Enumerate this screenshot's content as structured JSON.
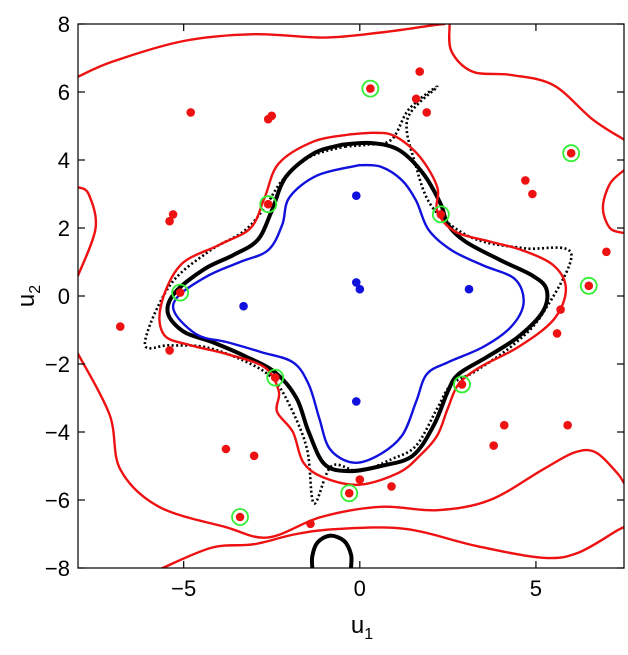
{
  "chart_data": {
    "type": "scatter",
    "title": "",
    "xlabel": "u",
    "xlabel_sub": "1",
    "ylabel": "u",
    "ylabel_sub": "2",
    "xlim": [
      -8,
      7.5
    ],
    "ylim": [
      -8,
      8
    ],
    "xticks": [
      -5,
      0,
      5
    ],
    "xtick_labels": [
      "−5",
      "0",
      "5"
    ],
    "yticks": [
      -8,
      -6,
      -4,
      -2,
      0,
      2,
      4,
      6,
      8
    ],
    "ytick_labels": [
      "−8",
      "−6",
      "−4",
      "−2",
      "0",
      "2",
      "4",
      "6",
      "8"
    ],
    "grid": false,
    "colors": {
      "red": "#ee1111",
      "blue": "#1111dd",
      "black": "#000000",
      "green_ring": "#33ee33"
    },
    "series": [
      {
        "kind": "points",
        "color": "red",
        "points": [
          [
            1.7,
            6.6
          ],
          [
            1.6,
            5.8
          ],
          [
            1.9,
            5.4
          ],
          [
            -4.8,
            5.4
          ],
          [
            -2.6,
            5.2
          ],
          [
            -2.5,
            5.3
          ],
          [
            -5.3,
            2.4
          ],
          [
            -5.4,
            2.2
          ],
          [
            4.7,
            3.4
          ],
          [
            4.9,
            3.0
          ],
          [
            -6.8,
            -0.9
          ],
          [
            -5.4,
            -1.6
          ],
          [
            5.7,
            -0.4
          ],
          [
            5.6,
            -1.1
          ],
          [
            4.1,
            -3.8
          ],
          [
            3.8,
            -4.4
          ],
          [
            5.9,
            -3.8
          ],
          [
            7.0,
            1.3
          ],
          [
            -3.8,
            -4.5
          ],
          [
            -3.0,
            -4.7
          ],
          [
            0.0,
            -5.4
          ],
          [
            0.9,
            -5.6
          ],
          [
            -1.4,
            -6.7
          ]
        ]
      },
      {
        "kind": "points",
        "color": "red",
        "ring": "green_ring",
        "points": [
          [
            0.3,
            6.1
          ],
          [
            6.0,
            4.2
          ],
          [
            2.3,
            2.4
          ],
          [
            -2.6,
            2.7
          ],
          [
            6.5,
            0.3
          ],
          [
            -5.1,
            0.1
          ],
          [
            -2.4,
            -2.4
          ],
          [
            2.9,
            -2.6
          ],
          [
            -0.3,
            -5.8
          ],
          [
            -3.4,
            -6.5
          ]
        ]
      },
      {
        "kind": "points",
        "color": "blue",
        "points": [
          [
            -0.1,
            2.95
          ],
          [
            -3.3,
            -0.3
          ],
          [
            -0.1,
            0.4
          ],
          [
            0.0,
            0.2
          ],
          [
            3.1,
            0.2
          ],
          [
            -0.1,
            -3.1
          ]
        ]
      },
      {
        "kind": "curve",
        "color": "black",
        "style": "solid-thick",
        "points": [
          [
            -0.5,
            4.45
          ],
          [
            -1.3,
            4.2
          ],
          [
            -2.1,
            3.5
          ],
          [
            -2.5,
            2.5
          ],
          [
            -2.9,
            1.65
          ],
          [
            -3.6,
            1.2
          ],
          [
            -4.4,
            0.8
          ],
          [
            -5.25,
            0.1
          ],
          [
            -5.45,
            -0.5
          ],
          [
            -5.0,
            -1.05
          ],
          [
            -4.2,
            -1.35
          ],
          [
            -3.3,
            -1.75
          ],
          [
            -2.4,
            -2.25
          ],
          [
            -1.8,
            -3.0
          ],
          [
            -1.45,
            -4.0
          ],
          [
            -1.0,
            -4.95
          ],
          [
            -0.3,
            -5.15
          ],
          [
            0.6,
            -5.0
          ],
          [
            1.5,
            -4.7
          ],
          [
            2.1,
            -3.8
          ],
          [
            2.5,
            -2.8
          ],
          [
            2.8,
            -2.3
          ],
          [
            3.6,
            -1.8
          ],
          [
            4.5,
            -1.2
          ],
          [
            5.2,
            -0.45
          ],
          [
            5.3,
            0.2
          ],
          [
            4.9,
            0.6
          ],
          [
            4.0,
            1.05
          ],
          [
            3.0,
            1.6
          ],
          [
            2.5,
            2.1
          ],
          [
            2.3,
            2.7
          ],
          [
            1.8,
            3.6
          ],
          [
            1.1,
            4.3
          ],
          [
            0.3,
            4.5
          ],
          [
            -0.5,
            4.45
          ]
        ]
      },
      {
        "kind": "curve",
        "color": "black",
        "style": "dotted",
        "points": [
          [
            -0.4,
            4.4
          ],
          [
            -1.4,
            4.1
          ],
          [
            -2.2,
            3.4
          ],
          [
            -2.7,
            2.6
          ],
          [
            -3.3,
            1.9
          ],
          [
            -4.3,
            1.3
          ],
          [
            -5.4,
            0.3
          ],
          [
            -6.1,
            -1.4
          ],
          [
            -5.4,
            -1.45
          ],
          [
            -4.4,
            -1.5
          ],
          [
            -3.3,
            -1.9
          ],
          [
            -2.5,
            -2.4
          ],
          [
            -2.0,
            -3.2
          ],
          [
            -1.5,
            -4.5
          ],
          [
            -1.3,
            -6.1
          ],
          [
            -0.8,
            -5.0
          ],
          [
            0.0,
            -5.15
          ],
          [
            0.9,
            -4.8
          ],
          [
            1.6,
            -4.4
          ],
          [
            2.2,
            -3.3
          ],
          [
            2.6,
            -2.6
          ],
          [
            3.3,
            -2.2
          ],
          [
            4.4,
            -1.4
          ],
          [
            5.2,
            -0.5
          ],
          [
            6.0,
            1.25
          ],
          [
            4.7,
            1.4
          ],
          [
            3.5,
            1.6
          ],
          [
            2.7,
            2.0
          ],
          [
            2.0,
            2.7
          ],
          [
            1.6,
            3.8
          ],
          [
            1.35,
            5.2
          ],
          [
            2.2,
            6.15
          ],
          [
            1.4,
            5.5
          ],
          [
            0.9,
            4.6
          ],
          [
            0.2,
            4.45
          ],
          [
            -0.4,
            4.4
          ]
        ]
      },
      {
        "kind": "curve",
        "color": "blue",
        "style": "solid",
        "points": [
          [
            0.0,
            3.85
          ],
          [
            -1.2,
            3.55
          ],
          [
            -2.0,
            2.9
          ],
          [
            -2.2,
            2.1
          ],
          [
            -2.6,
            1.35
          ],
          [
            -3.4,
            1.0
          ],
          [
            -4.3,
            0.6
          ],
          [
            -5.15,
            0.0
          ],
          [
            -5.25,
            -0.5
          ],
          [
            -4.6,
            -1.15
          ],
          [
            -3.8,
            -1.35
          ],
          [
            -2.8,
            -1.65
          ],
          [
            -1.9,
            -1.95
          ],
          [
            -1.45,
            -2.6
          ],
          [
            -1.15,
            -3.6
          ],
          [
            -0.85,
            -4.5
          ],
          [
            -0.2,
            -4.9
          ],
          [
            0.5,
            -4.7
          ],
          [
            1.2,
            -4.1
          ],
          [
            1.6,
            -3.1
          ],
          [
            1.9,
            -2.3
          ],
          [
            2.5,
            -1.95
          ],
          [
            3.5,
            -1.5
          ],
          [
            4.3,
            -0.9
          ],
          [
            4.65,
            -0.2
          ],
          [
            4.4,
            0.5
          ],
          [
            3.5,
            0.9
          ],
          [
            2.6,
            1.35
          ],
          [
            1.95,
            1.95
          ],
          [
            1.6,
            2.8
          ],
          [
            1.2,
            3.4
          ],
          [
            0.6,
            3.8
          ],
          [
            0.0,
            3.85
          ]
        ]
      },
      {
        "kind": "curve",
        "color": "red",
        "style": "solid",
        "points": [
          [
            -0.3,
            4.75
          ],
          [
            -1.3,
            4.55
          ],
          [
            -2.3,
            3.9
          ],
          [
            -2.7,
            2.9
          ],
          [
            -3.1,
            2.0
          ],
          [
            -4.0,
            1.5
          ],
          [
            -5.1,
            0.9
          ],
          [
            -5.65,
            -0.3
          ],
          [
            -5.55,
            -1.15
          ],
          [
            -4.8,
            -1.45
          ],
          [
            -3.8,
            -1.7
          ],
          [
            -2.7,
            -2.1
          ],
          [
            -2.3,
            -2.8
          ],
          [
            -2.35,
            -3.4
          ],
          [
            -1.9,
            -4.0
          ],
          [
            -1.6,
            -4.9
          ],
          [
            -1.0,
            -5.35
          ],
          [
            0.0,
            -5.55
          ],
          [
            1.1,
            -5.2
          ],
          [
            1.7,
            -4.7
          ],
          [
            2.2,
            -4.1
          ],
          [
            2.5,
            -3.3
          ],
          [
            2.8,
            -2.6
          ],
          [
            3.4,
            -2.1
          ],
          [
            4.5,
            -1.5
          ],
          [
            5.5,
            -0.7
          ],
          [
            5.85,
            0.2
          ],
          [
            5.5,
            0.9
          ],
          [
            4.6,
            1.35
          ],
          [
            3.7,
            1.6
          ],
          [
            2.7,
            1.9
          ],
          [
            2.2,
            2.5
          ],
          [
            2.2,
            3.2
          ],
          [
            1.7,
            4.1
          ],
          [
            1.0,
            4.7
          ],
          [
            0.4,
            4.8
          ],
          [
            -0.3,
            4.75
          ]
        ]
      },
      {
        "kind": "curve",
        "color": "red",
        "style": "solid",
        "points": [
          [
            -8.0,
            6.45
          ],
          [
            -7.0,
            6.9
          ],
          [
            -5.0,
            7.5
          ],
          [
            -3.0,
            7.7
          ],
          [
            -1.0,
            7.6
          ],
          [
            0.6,
            7.75
          ],
          [
            2.0,
            7.95
          ],
          [
            2.4,
            8.0
          ]
        ]
      },
      {
        "kind": "curve",
        "color": "red",
        "style": "solid",
        "points": [
          [
            2.55,
            8.0
          ],
          [
            2.6,
            7.2
          ],
          [
            3.2,
            6.6
          ],
          [
            4.3,
            6.5
          ],
          [
            5.5,
            6.2
          ],
          [
            6.6,
            5.2
          ],
          [
            7.5,
            4.6
          ]
        ]
      },
      {
        "kind": "curve",
        "color": "red",
        "style": "solid",
        "points": [
          [
            -8.0,
            0.6
          ],
          [
            -7.5,
            2.0
          ],
          [
            -7.7,
            3.0
          ],
          [
            -8.0,
            3.2
          ]
        ]
      },
      {
        "kind": "curve",
        "color": "red",
        "style": "solid",
        "points": [
          [
            7.5,
            3.7
          ],
          [
            7.1,
            3.3
          ],
          [
            6.9,
            2.6
          ],
          [
            7.1,
            2.0
          ],
          [
            7.5,
            1.85
          ]
        ]
      },
      {
        "kind": "curve",
        "color": "red",
        "style": "solid",
        "points": [
          [
            -8.0,
            -1.7
          ],
          [
            -7.1,
            -3.5
          ],
          [
            -6.8,
            -5.1
          ],
          [
            -5.7,
            -6.2
          ],
          [
            -3.8,
            -6.8
          ],
          [
            -2.6,
            -7.1
          ],
          [
            -1.1,
            -6.5
          ],
          [
            0.6,
            -6.2
          ],
          [
            2.2,
            -6.3
          ],
          [
            3.7,
            -6.0
          ],
          [
            5.2,
            -5.1
          ],
          [
            6.1,
            -4.6
          ],
          [
            6.7,
            -4.6
          ],
          [
            7.3,
            -5.2
          ],
          [
            7.5,
            -5.5
          ]
        ]
      },
      {
        "kind": "curve",
        "color": "red",
        "style": "solid",
        "points": [
          [
            -5.6,
            -8.0
          ],
          [
            -4.2,
            -7.4
          ],
          [
            -3.0,
            -7.3
          ],
          [
            -1.8,
            -7.0
          ],
          [
            -0.6,
            -6.85
          ],
          [
            1.3,
            -6.85
          ],
          [
            3.3,
            -7.35
          ],
          [
            5.2,
            -7.7
          ],
          [
            6.2,
            -7.55
          ],
          [
            7.3,
            -6.9
          ],
          [
            7.5,
            -6.8
          ]
        ]
      },
      {
        "kind": "curve",
        "color": "black",
        "style": "solid-thick",
        "points": [
          [
            -1.35,
            -8.0
          ],
          [
            -1.35,
            -7.65
          ],
          [
            -1.2,
            -7.25
          ],
          [
            -0.85,
            -7.05
          ],
          [
            -0.45,
            -7.2
          ],
          [
            -0.25,
            -7.6
          ],
          [
            -0.25,
            -8.0
          ]
        ]
      }
    ]
  }
}
